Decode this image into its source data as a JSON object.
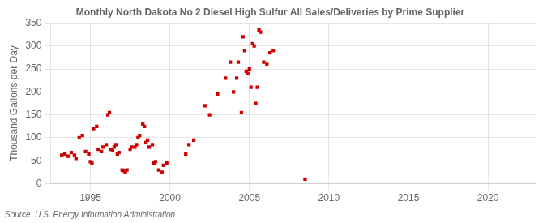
{
  "chart_data": {
    "type": "scatter",
    "title": "Monthly North Dakota No 2 Diesel High Sulfur All Sales/Deliveries by Prime Supplier",
    "ylabel": "Thousand Gallons per Day",
    "source": "Source: U.S. Energy Information Administration",
    "color": "#cc0000",
    "marker": "square",
    "grid": true,
    "xlim": [
      1992.5,
      2023
    ],
    "ylim": [
      0,
      350
    ],
    "xticks": [
      1995,
      2000,
      2005,
      2010,
      2015,
      2020
    ],
    "yticks": [
      0,
      50,
      100,
      150,
      200,
      250,
      300,
      350
    ],
    "x": [
      1993.2,
      1993.4,
      1993.6,
      1993.8,
      1994.0,
      1994.1,
      1994.3,
      1994.5,
      1994.7,
      1994.9,
      1995.0,
      1995.1,
      1995.2,
      1995.4,
      1995.5,
      1995.7,
      1995.8,
      1996.0,
      1996.1,
      1996.2,
      1996.3,
      1996.4,
      1996.5,
      1996.6,
      1996.7,
      1996.8,
      1997.0,
      1997.1,
      1997.2,
      1997.3,
      1997.5,
      1997.6,
      1997.8,
      1997.9,
      1998.0,
      1998.1,
      1998.3,
      1998.4,
      1998.5,
      1998.6,
      1998.7,
      1998.9,
      1999.0,
      1999.1,
      1999.3,
      1999.5,
      1999.6,
      1999.8,
      2001.0,
      2001.2,
      2001.5,
      2002.2,
      2002.5,
      2003.0,
      2003.5,
      2003.8,
      2004.0,
      2004.2,
      2004.3,
      2004.5,
      2004.6,
      2004.7,
      2004.8,
      2004.9,
      2005.0,
      2005.1,
      2005.2,
      2005.3,
      2005.4,
      2005.5,
      2005.6,
      2005.7,
      2005.9,
      2006.1,
      2006.3,
      2006.5,
      2008.5
    ],
    "values": [
      62,
      65,
      60,
      68,
      62,
      55,
      100,
      105,
      70,
      65,
      48,
      45,
      120,
      125,
      75,
      70,
      80,
      85,
      150,
      155,
      75,
      72,
      80,
      85,
      65,
      68,
      30,
      28,
      25,
      30,
      75,
      80,
      80,
      85,
      100,
      105,
      130,
      125,
      90,
      95,
      80,
      85,
      45,
      48,
      30,
      25,
      40,
      45,
      65,
      85,
      95,
      170,
      150,
      195,
      230,
      265,
      200,
      230,
      265,
      155,
      320,
      290,
      245,
      240,
      250,
      210,
      305,
      300,
      175,
      210,
      335,
      330,
      265,
      260,
      285,
      290,
      10
    ]
  }
}
